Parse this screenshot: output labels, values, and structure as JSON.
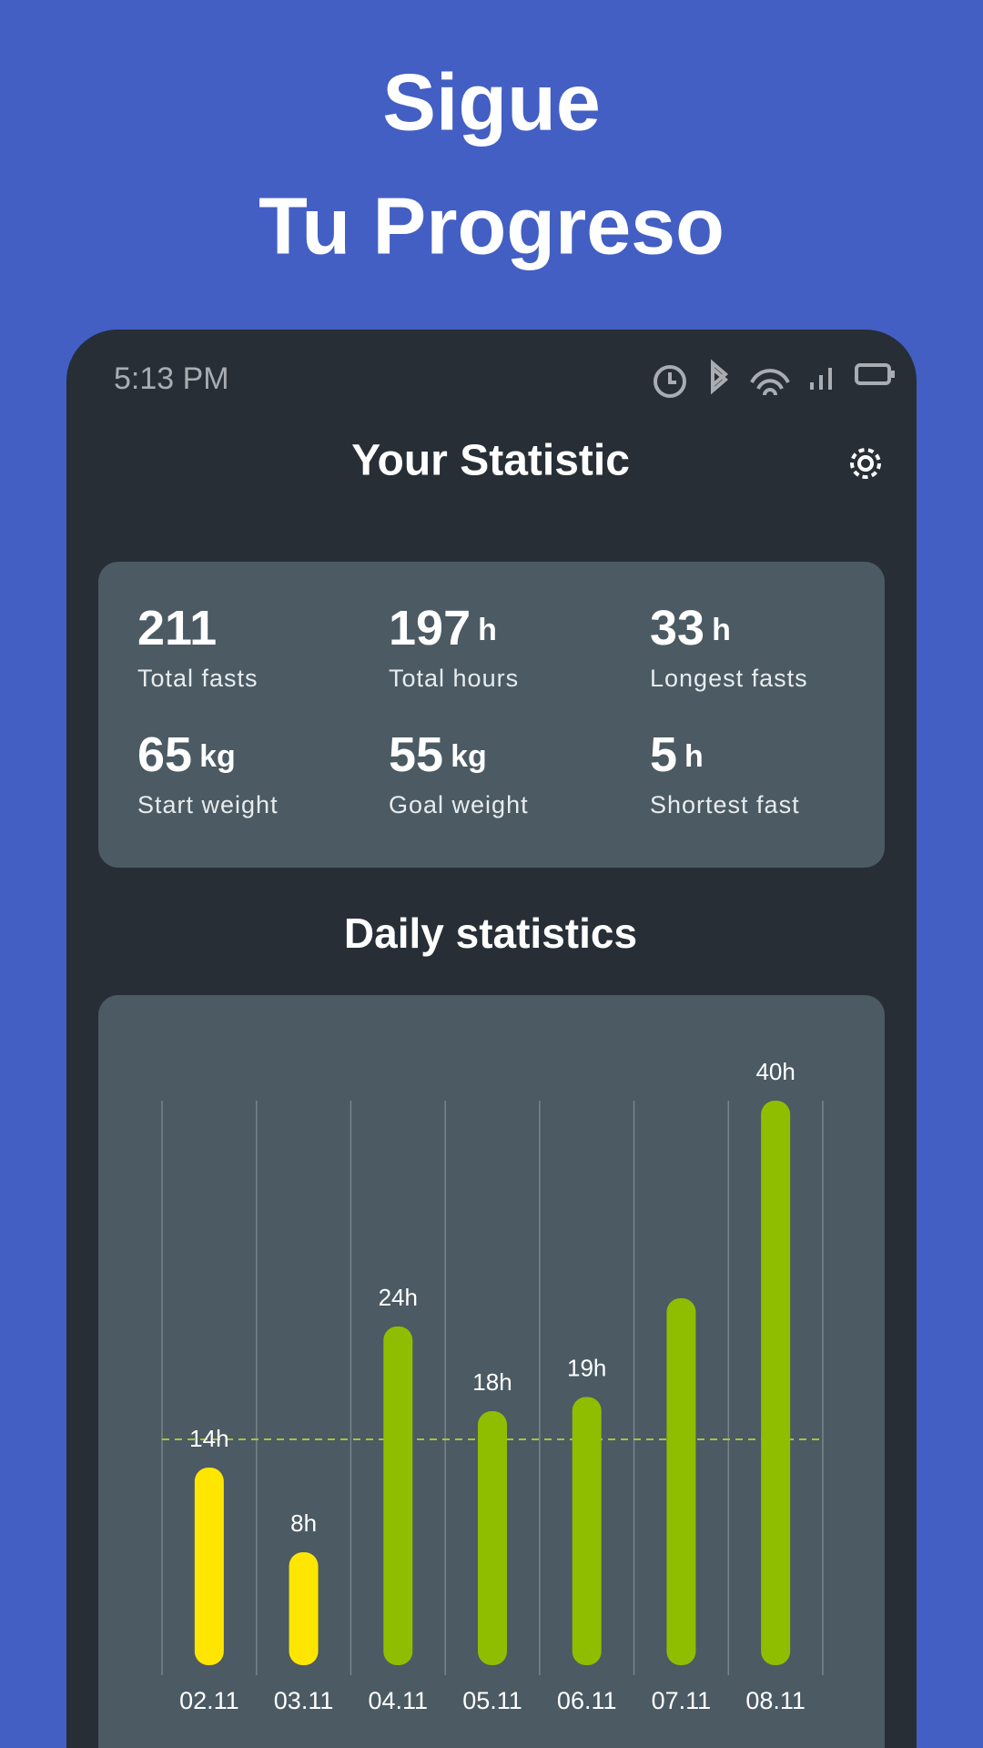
{
  "header": {
    "title": [
      "Sigue",
      "Tu Progreso"
    ]
  },
  "status": {
    "time": "5:13 PM"
  },
  "screen": {
    "title": "Your Statistic"
  },
  "stats": [
    {
      "value": 211,
      "label": "Total fasts"
    },
    {
      "value": 197,
      "unit": "h",
      "label": "Total hours"
    },
    {
      "value": 33,
      "unit": "h",
      "label": "Longest fasts"
    },
    {
      "value": 65,
      "unit": "kg",
      "label": "Start weight"
    },
    {
      "value": 55,
      "unit": "kg",
      "label": "Goal weight"
    },
    {
      "value": 5,
      "unit": "h",
      "label": "Shortest fast"
    }
  ],
  "chart_data": {
    "type": "bar",
    "title": "Daily statistics",
    "categories": [
      "02.11",
      "03.11",
      "04.11",
      "05.11",
      "06.11",
      "07.11",
      "08.11"
    ],
    "values": [
      14,
      8,
      24,
      18,
      19,
      26,
      40
    ],
    "value_labels": [
      "14h",
      "8h",
      "24h",
      "18h",
      "19h",
      null,
      "40h"
    ],
    "colors": [
      "#ffe600",
      "#ffe600",
      "#8fbe00",
      "#8fbe00",
      "#8fbe00",
      "#8fbe00",
      "#8fbe00"
    ],
    "ylim": [
      0,
      40
    ],
    "reference_line": 16,
    "reference_color": "#a6c33a"
  }
}
